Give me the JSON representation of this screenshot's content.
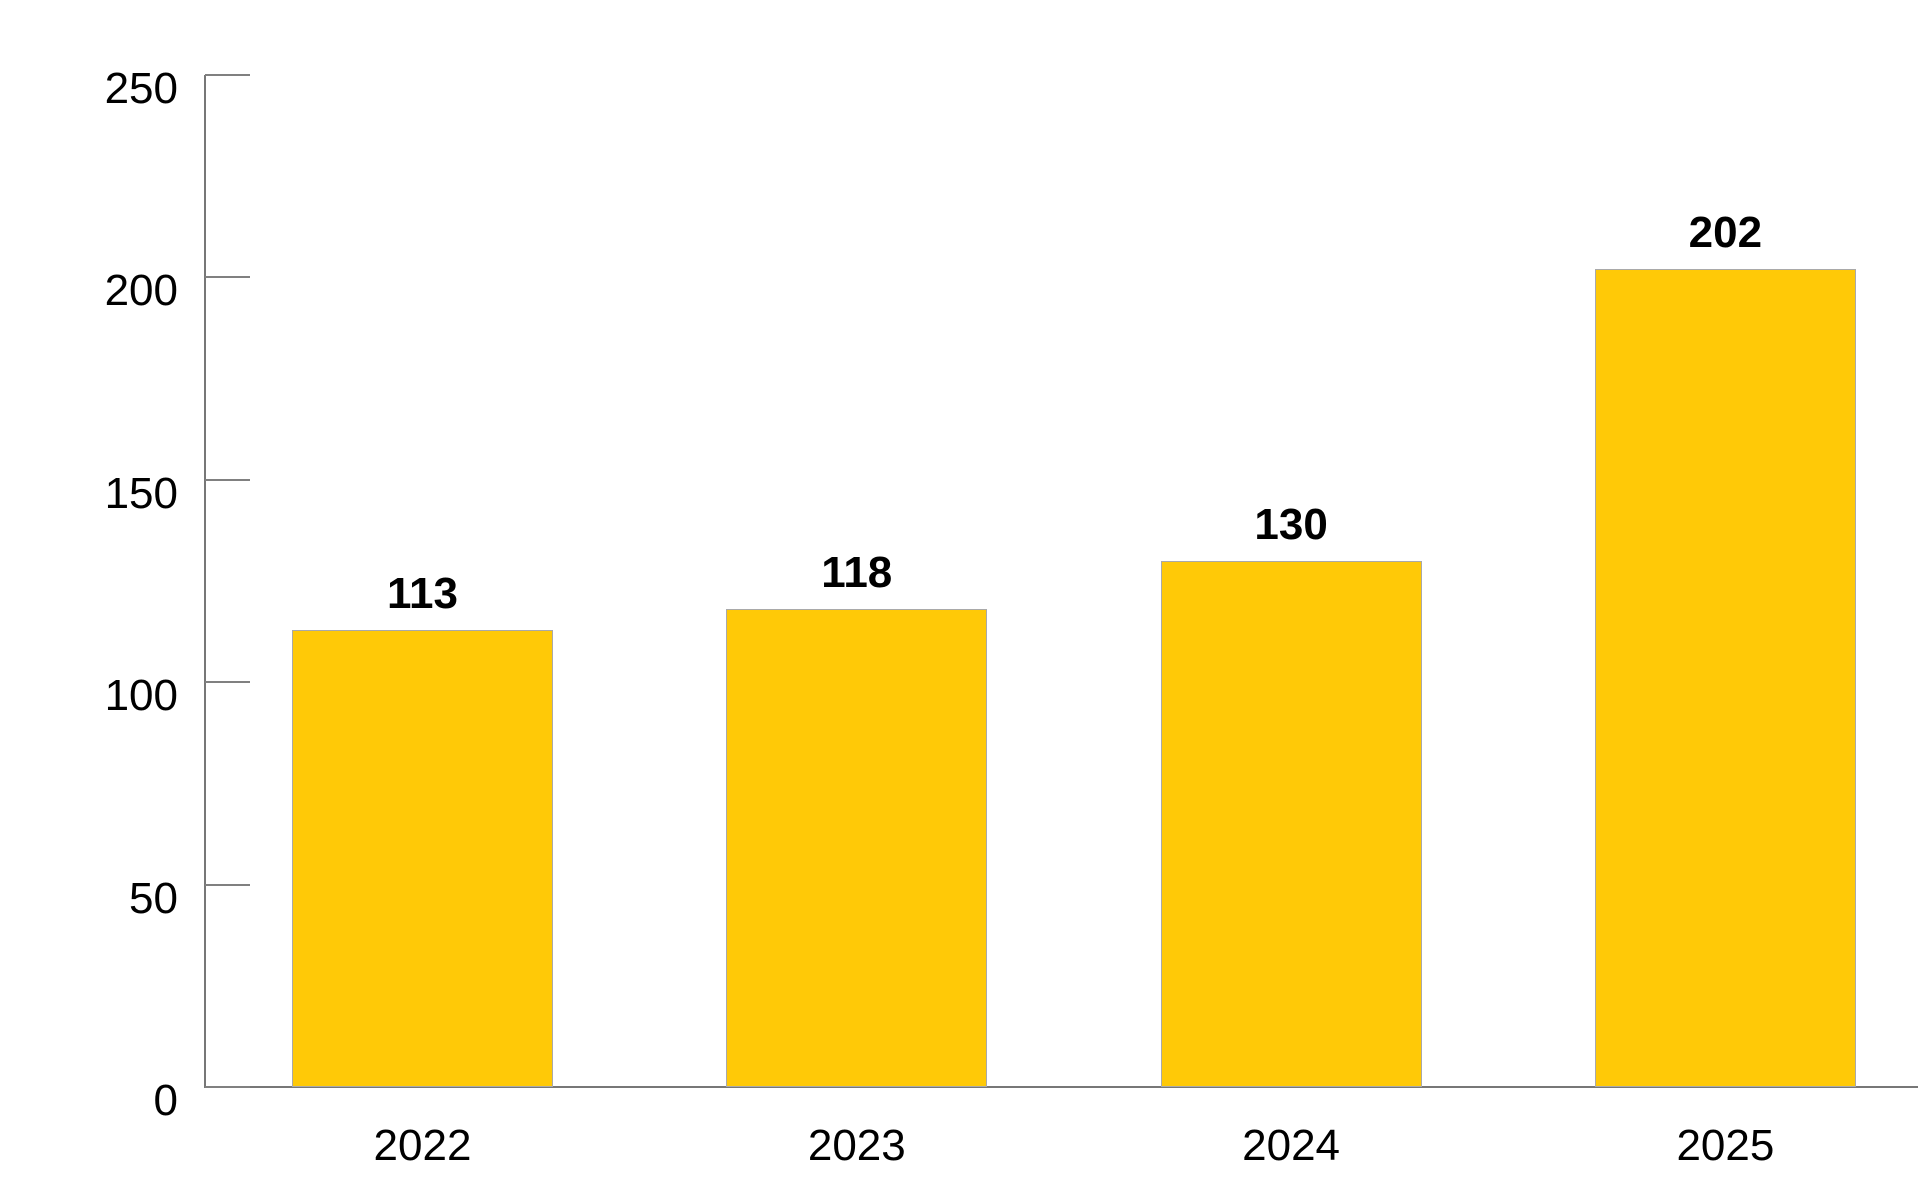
{
  "chart_data": {
    "type": "bar",
    "title": "",
    "categories": [
      "2022",
      "2023",
      "2024",
      "2025"
    ],
    "values": [
      113,
      118,
      130,
      202
    ],
    "value_labels": [
      "113",
      "118",
      "130",
      "202"
    ],
    "xlabel": "",
    "ylabel": "",
    "ylim": [
      0,
      250
    ],
    "yticks": [
      0,
      50,
      100,
      150,
      200,
      250
    ],
    "ytick_labels": [
      "0",
      "50",
      "100",
      "150",
      "200",
      "250"
    ],
    "grid": false,
    "legend_position": "none",
    "bar_color": "#FFC907",
    "bar_border_color": "#A9A9A9",
    "axis_color": "#777777",
    "text_color": "#000000"
  }
}
